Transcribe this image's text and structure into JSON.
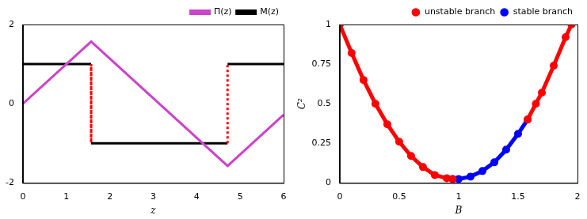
{
  "chart_data": [
    {
      "type": "line",
      "x_label": "z",
      "xlim": [
        0,
        6
      ],
      "xticks": [
        0,
        1,
        2,
        3,
        4,
        5,
        6
      ],
      "ylim": [
        -2,
        2
      ],
      "yticks": [
        -2,
        0,
        2
      ],
      "grid": false,
      "legend": "upper right",
      "series": [
        {
          "name": "Π(z)",
          "color": "#cc44cc",
          "x": [
            0,
            1.57,
            4.71,
            6
          ],
          "values": [
            0,
            1.57,
            -1.57,
            -0.28
          ]
        },
        {
          "name": "M(z)",
          "color": "#000000",
          "x": [
            0,
            1.57,
            1.57,
            4.71,
            4.71,
            6
          ],
          "values": [
            1,
            1,
            -1,
            -1,
            1,
            1
          ]
        }
      ]
    },
    {
      "type": "scatter",
      "x_label": "B",
      "y_label": "C²",
      "xlim": [
        0,
        2
      ],
      "xticks": [
        0,
        0.5,
        1,
        1.5,
        2
      ],
      "ylim": [
        0,
        1
      ],
      "yticks": [
        0,
        0.25,
        0.5,
        0.75,
        1
      ],
      "grid": false,
      "legend": "upper right",
      "series": [
        {
          "name": "unstable branch",
          "color": "#ff0000",
          "marker": "o",
          "x": [
            0,
            0.1,
            0.2,
            0.3,
            0.4,
            0.5,
            0.6,
            0.7,
            0.8,
            0.9,
            0.95,
            1.3,
            1.58,
            1.65,
            1.7,
            1.8,
            1.9,
            1.95
          ],
          "values": [
            1.0,
            0.82,
            0.65,
            0.5,
            0.37,
            0.26,
            0.17,
            0.1,
            0.05,
            0.03,
            0.025,
            null,
            0.4,
            0.5,
            0.57,
            0.74,
            0.92,
            1.0
          ]
        },
        {
          "name": "stable branch",
          "color": "#0000ff",
          "marker": "o",
          "x": [
            0.95,
            1.0,
            1.1,
            1.2,
            1.3,
            1.4,
            1.5,
            1.58
          ],
          "values": [
            0.025,
            0.025,
            0.04,
            0.075,
            0.13,
            0.21,
            0.31,
            0.4
          ]
        }
      ]
    }
  ]
}
